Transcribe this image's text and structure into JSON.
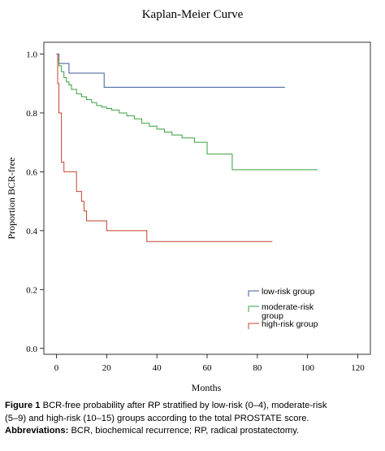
{
  "chart_data": {
    "type": "line",
    "subtype": "kaplan-meier-step",
    "title": "Kaplan-Meier Curve",
    "xlabel": "Months",
    "ylabel": "Proportion BCR-free",
    "xlim": [
      -5,
      125
    ],
    "ylim": [
      -0.02,
      1.04
    ],
    "xticks": [
      0,
      20,
      40,
      60,
      80,
      100,
      120
    ],
    "yticks": [
      0.0,
      0.2,
      0.4,
      0.6,
      0.8,
      1.0
    ],
    "xtick_labels": [
      "0",
      "20",
      "40",
      "60",
      "80",
      "100",
      "120"
    ],
    "ytick_labels": [
      "0.0",
      "0.2",
      "0.4",
      "0.6",
      "0.8",
      "1.0"
    ],
    "grid": false,
    "legend_position": "bottom-right",
    "series": [
      {
        "name": "low-risk group",
        "color": "#3d5a99",
        "x": [
          0,
          1,
          5,
          19,
          91
        ],
        "y": [
          1.0,
          0.968,
          0.935,
          0.887,
          0.887
        ]
      },
      {
        "name": "moderate-risk group",
        "color": "#3aa040",
        "x": [
          0,
          0.5,
          1,
          2,
          3,
          4,
          5,
          6,
          8,
          10,
          12,
          14,
          16,
          18,
          20,
          22,
          25,
          28,
          31,
          34,
          37,
          40,
          43,
          46,
          50,
          55,
          60,
          70,
          104
        ],
        "y": [
          1.0,
          0.98,
          0.96,
          0.94,
          0.92,
          0.905,
          0.895,
          0.88,
          0.865,
          0.855,
          0.845,
          0.835,
          0.825,
          0.82,
          0.815,
          0.81,
          0.8,
          0.79,
          0.78,
          0.765,
          0.755,
          0.745,
          0.735,
          0.725,
          0.715,
          0.7,
          0.66,
          0.607,
          0.607
        ]
      },
      {
        "name": "high-risk group",
        "color": "#c8412e",
        "x": [
          0,
          0.5,
          1,
          2,
          3,
          8,
          10,
          11,
          12,
          14,
          20,
          36,
          86
        ],
        "y": [
          1.0,
          0.9,
          0.8,
          0.633,
          0.6,
          0.533,
          0.5,
          0.467,
          0.433,
          0.433,
          0.4,
          0.363,
          0.363
        ]
      }
    ]
  },
  "caption": {
    "figure_label": "Figure 1",
    "figure_text_lines": [
      "BCR-free probability after RP stratified by low-risk (0–4), moderate-risk",
      "(5–9) and high-risk (10–15) groups according to the total PROSTATE score."
    ],
    "abbreviations_label": "Abbreviations:",
    "abbreviations_text": "BCR, biochemical recurrence; RP, radical prostatectomy."
  }
}
